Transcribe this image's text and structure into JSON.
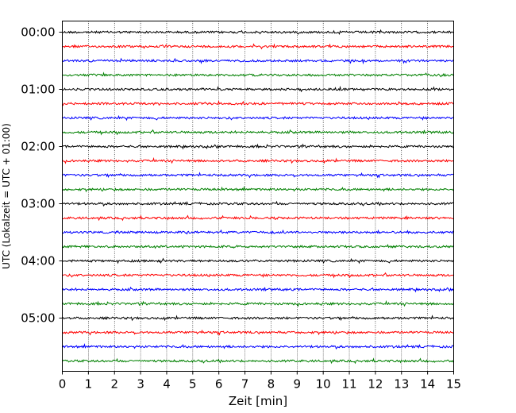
{
  "chart_data": {
    "type": "line",
    "title": "",
    "xlabel": "Zeit  [min]",
    "ylabel": "UTC (Lokalzeit = UTC + 01:00)",
    "xlim": [
      0,
      15
    ],
    "x_ticks": [
      0,
      1,
      2,
      3,
      4,
      5,
      6,
      7,
      8,
      9,
      10,
      11,
      12,
      13,
      14,
      15
    ],
    "y_tick_labels": [
      "00:00",
      "01:00",
      "02:00",
      "03:00",
      "04:00",
      "05:00"
    ],
    "trace_interval_min": 15,
    "trace_count": 24,
    "trace_colors": [
      "#000000",
      "#ff0000",
      "#0000ff",
      "#008000"
    ],
    "grid": "vertical dotted",
    "legend": "none"
  }
}
